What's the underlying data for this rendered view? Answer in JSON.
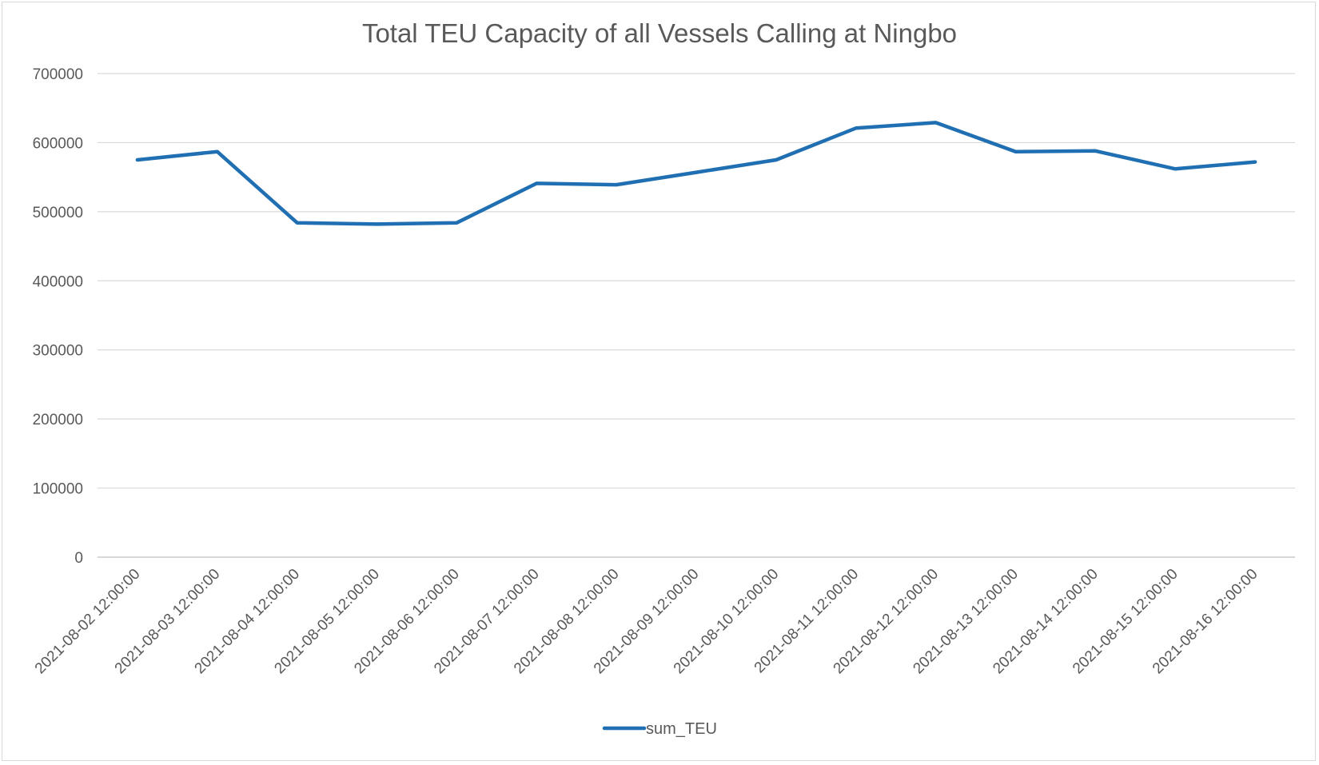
{
  "chart_data": {
    "type": "line",
    "title": "Total TEU Capacity of all Vessels Calling at Ningbo",
    "xlabel": "",
    "ylabel": "",
    "categories": [
      "2021-08-02 12:00:00",
      "2021-08-03 12:00:00",
      "2021-08-04 12:00:00",
      "2021-08-05 12:00:00",
      "2021-08-06 12:00:00",
      "2021-08-07 12:00:00",
      "2021-08-08 12:00:00",
      "2021-08-09 12:00:00",
      "2021-08-10 12:00:00",
      "2021-08-11 12:00:00",
      "2021-08-12 12:00:00",
      "2021-08-13 12:00:00",
      "2021-08-14 12:00:00",
      "2021-08-15 12:00:00",
      "2021-08-16 12:00:00"
    ],
    "series": [
      {
        "name": "sum_TEU",
        "color": "#1f6fb2",
        "values": [
          575000,
          587000,
          484000,
          482000,
          484000,
          541000,
          539000,
          557000,
          575000,
          621000,
          629000,
          587000,
          588000,
          562000,
          572000
        ]
      }
    ],
    "ylim": [
      0,
      700000
    ],
    "yticks": [
      "0",
      "100000",
      "200000",
      "300000",
      "400000",
      "500000",
      "600000",
      "700000"
    ],
    "grid": true,
    "legend_position": "bottom"
  }
}
